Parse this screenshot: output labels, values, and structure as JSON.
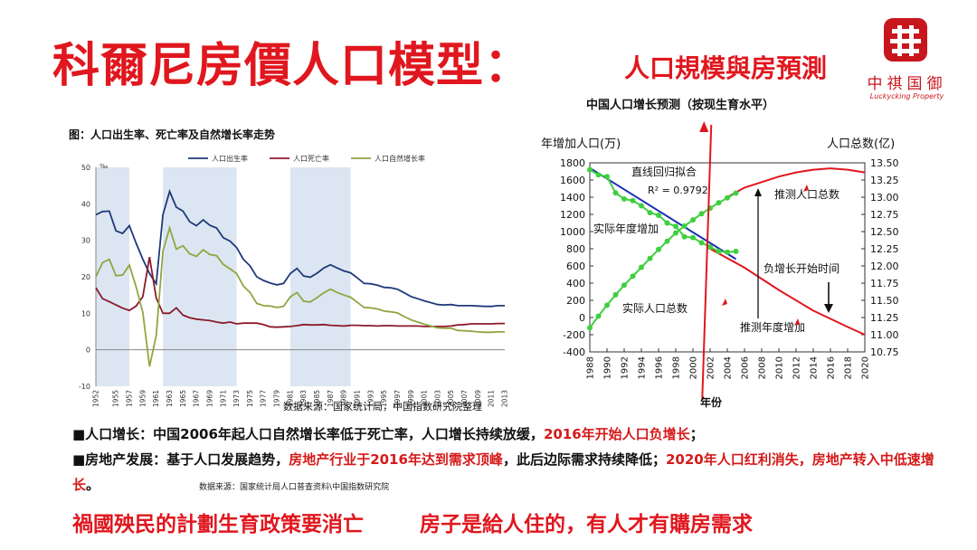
{
  "header": {
    "title": "科爾尼房價人口模型：",
    "subtitle": "人口規模與房預測",
    "logo_cn": "中祺国御",
    "logo_en": "Luckycking Property"
  },
  "colors": {
    "accent": "#e0171e",
    "birth": "#1f3a7a",
    "death": "#8b1a2b",
    "natural": "#8fa642",
    "shade": "#dce6f2"
  },
  "chart_data": [
    {
      "type": "line",
      "title": "图：人口出生率、死亡率及自然增长率走势",
      "unit_label": "‰",
      "source": "数据来源：国家统计局，中国指数研究院整理",
      "ylim": [
        -10,
        50
      ],
      "yticks": [
        -10,
        0,
        10,
        20,
        30,
        40,
        50
      ],
      "xlim": [
        1952,
        2013
      ],
      "xticks": [
        1952,
        1955,
        1957,
        1959,
        1961,
        1963,
        1965,
        1967,
        1969,
        1971,
        1973,
        1975,
        1977,
        1979,
        1981,
        1983,
        1985,
        1987,
        1989,
        1991,
        1993,
        1995,
        1997,
        1999,
        2001,
        2003,
        2005,
        2007,
        2009,
        2011,
        2013
      ],
      "shaded_ranges": [
        [
          1952,
          1957
        ],
        [
          1962,
          1973
        ],
        [
          1981,
          1990
        ]
      ],
      "legend_position": "top",
      "x": [
        1952,
        1953,
        1954,
        1955,
        1956,
        1957,
        1958,
        1959,
        1960,
        1961,
        1962,
        1963,
        1964,
        1965,
        1966,
        1967,
        1968,
        1969,
        1970,
        1971,
        1972,
        1973,
        1974,
        1975,
        1976,
        1977,
        1978,
        1979,
        1980,
        1981,
        1982,
        1983,
        1984,
        1985,
        1986,
        1987,
        1988,
        1989,
        1990,
        1991,
        1992,
        1993,
        1994,
        1995,
        1996,
        1997,
        1998,
        1999,
        2000,
        2001,
        2002,
        2003,
        2004,
        2005,
        2006,
        2007,
        2008,
        2009,
        2010,
        2011,
        2012,
        2013
      ],
      "series": [
        {
          "name": "人口出生率",
          "values": [
            37,
            37.9,
            38,
            32.6,
            31.9,
            34,
            29.2,
            24.8,
            20.9,
            18.1,
            37,
            43.4,
            39.1,
            38,
            35.1,
            34,
            35.6,
            34.1,
            33.4,
            30.7,
            29.8,
            28,
            24.8,
            23,
            20,
            19,
            18.3,
            17.8,
            18.2,
            20.9,
            22.3,
            20.2,
            19.9,
            21,
            22.4,
            23.3,
            22.4,
            21.6,
            21.1,
            19.7,
            18.2,
            18.1,
            17.7,
            17.1,
            17,
            16.6,
            15.6,
            14.6,
            14,
            13.4,
            12.9,
            12.4,
            12.3,
            12.4,
            12.1,
            12.1,
            12.1,
            12,
            11.9,
            11.9,
            12.1,
            12.1
          ]
        },
        {
          "name": "人口死亡率",
          "values": [
            17,
            14,
            13.2,
            12.3,
            11.4,
            10.8,
            12,
            14.6,
            25.4,
            14.2,
            10,
            10,
            11.5,
            9.5,
            8.8,
            8.4,
            8.2,
            8,
            7.6,
            7.3,
            7.6,
            7.1,
            7.3,
            7.3,
            7.3,
            6.9,
            6.3,
            6.2,
            6.3,
            6.4,
            6.6,
            6.9,
            6.8,
            6.8,
            6.9,
            6.7,
            6.6,
            6.5,
            6.7,
            6.7,
            6.6,
            6.6,
            6.5,
            6.6,
            6.6,
            6.5,
            6.5,
            6.5,
            6.5,
            6.4,
            6.4,
            6.4,
            6.4,
            6.5,
            6.8,
            6.9,
            7.1,
            7.1,
            7.1,
            7.1,
            7.2,
            7.2
          ]
        },
        {
          "name": "人口自然增长率",
          "values": [
            20,
            23.9,
            24.8,
            20.3,
            20.5,
            23.2,
            17.2,
            10.2,
            -4.6,
            3.9,
            27,
            33.4,
            27.6,
            28.5,
            26.3,
            25.6,
            27.4,
            26.1,
            25.8,
            23.4,
            22.2,
            20.9,
            17.5,
            15.7,
            12.7,
            12.1,
            12,
            11.6,
            11.9,
            14.5,
            15.7,
            13.3,
            13.1,
            14.3,
            15.6,
            16.6,
            15.7,
            15,
            14.4,
            13,
            11.6,
            11.5,
            11.2,
            10.6,
            10.4,
            10.1,
            9.1,
            8.2,
            7.6,
            7,
            6.5,
            6,
            5.9,
            5.9,
            5.3,
            5.2,
            5.1,
            4.9,
            4.8,
            4.8,
            4.9,
            4.9
          ]
        }
      ]
    },
    {
      "type": "line",
      "title": "中国人口增长预测（按现生育水平）",
      "ylabel_left": "年增加人口(万)",
      "ylabel_right": "人口总数(亿)",
      "xlabel": "年份",
      "ylim_left": [
        -400,
        1800
      ],
      "yticks_left": [
        -400,
        -200,
        0,
        200,
        400,
        600,
        800,
        1000,
        1200,
        1400,
        1600,
        1800
      ],
      "ylim_right": [
        10.75,
        13.5
      ],
      "yticks_right": [
        "10.75",
        "11.00",
        "11.25",
        "11.50",
        "11.75",
        "12.00",
        "12.25",
        "12.50",
        "12.75",
        "13.00",
        "13.25",
        "13.50"
      ],
      "xlim": [
        1988,
        2020
      ],
      "xticks": [
        1988,
        1990,
        1992,
        1994,
        1996,
        1998,
        2000,
        2002,
        2004,
        2006,
        2008,
        2010,
        2012,
        2014,
        2016,
        2018,
        2020
      ],
      "annotations": [
        "直线回归拟合",
        "R² = 0.9792",
        "实际年度增加",
        "实际人口总数",
        "推测人口总数",
        "负增长开始时间",
        "推测年度增加"
      ],
      "vertical_marker_x": 2001.5,
      "series": [
        {
          "name": "实际年度增加",
          "axis": "left",
          "x": [
            1988,
            1989,
            1990,
            1991,
            1992,
            1993,
            1994,
            1995,
            1996,
            1997,
            1998,
            1999,
            2000,
            2001,
            2002,
            2003,
            2004,
            2005
          ],
          "values": [
            1720,
            1660,
            1640,
            1450,
            1380,
            1360,
            1300,
            1220,
            1190,
            1100,
            1060,
            940,
            930,
            870,
            820,
            770,
            760,
            770
          ]
        },
        {
          "name": "直线回归拟合",
          "axis": "left",
          "x": [
            1988,
            2005
          ],
          "values": [
            1740,
            680
          ]
        },
        {
          "name": "推测年度增加",
          "axis": "left",
          "x": [
            2002,
            2006,
            2010,
            2014,
            2018,
            2020
          ],
          "values": [
            800,
            580,
            320,
            80,
            -110,
            -200
          ]
        },
        {
          "name": "实际人口总数",
          "axis": "right",
          "x": [
            1988,
            1989,
            1990,
            1991,
            1992,
            1993,
            1994,
            1995,
            1996,
            1997,
            1998,
            1999,
            2000,
            2001,
            2002,
            2003,
            2004,
            2005
          ],
          "values": [
            11.1,
            11.27,
            11.43,
            11.58,
            11.72,
            11.85,
            11.98,
            12.11,
            12.24,
            12.36,
            12.48,
            12.58,
            12.67,
            12.76,
            12.84,
            12.92,
            12.99,
            13.06
          ]
        },
        {
          "name": "推测人口总数",
          "axis": "right",
          "x": [
            2006,
            2008,
            2010,
            2012,
            2014,
            2016,
            2018,
            2020
          ],
          "values": [
            13.14,
            13.22,
            13.3,
            13.36,
            13.4,
            13.42,
            13.4,
            13.36
          ]
        }
      ]
    }
  ],
  "bullets": [
    {
      "lead": "■人口增长：中国2006年起人口自然增长率低于死亡率，人口增长持续放缓，",
      "red": "2016年开始人口负增长",
      "tail": "；"
    },
    {
      "lead": "■房地产发展：基于人口发展趋势，",
      "red": "房地产行业于2016年达到需求顶峰",
      "mid": "，此后边际需求持续降低；",
      "red2": "2020年人口红利消失，房地产转入中低速增长",
      "tail": "。"
    }
  ],
  "bullet_source": "数据来源：国家统计局人口普查资料\\中国指数研究院",
  "slogans": [
    "禍國殃民的計劃生育政策要消亡",
    "房子是給人住的，有人才有購房需求"
  ]
}
